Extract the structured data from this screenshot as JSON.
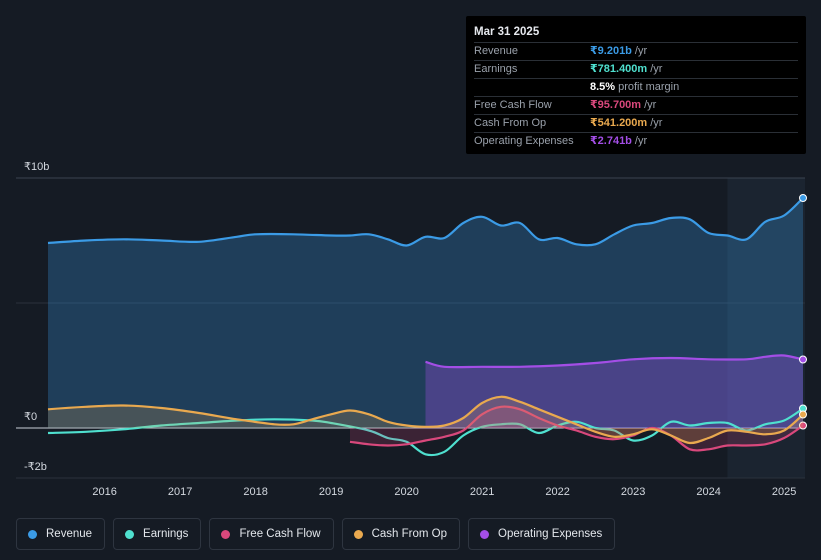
{
  "tooltip": {
    "date": "Mar 31 2025",
    "rows": [
      {
        "label": "Revenue",
        "value": "₹9.201b",
        "unit": "/yr",
        "color": "#3b9be6"
      },
      {
        "label": "Earnings",
        "value": "₹781.400m",
        "unit": "/yr",
        "color": "#4fe0cf"
      },
      {
        "label": "",
        "value": "8.5%",
        "unit": "profit margin",
        "color": "#ffffff"
      },
      {
        "label": "Free Cash Flow",
        "value": "₹95.700m",
        "unit": "/yr",
        "color": "#d9487c"
      },
      {
        "label": "Cash From Op",
        "value": "₹541.200m",
        "unit": "/yr",
        "color": "#e9a94f"
      },
      {
        "label": "Operating Expenses",
        "value": "₹2.741b",
        "unit": "/yr",
        "color": "#a34ee6"
      }
    ]
  },
  "legend": [
    {
      "label": "Revenue",
      "color": "#3b9be6"
    },
    {
      "label": "Earnings",
      "color": "#4fe0cf"
    },
    {
      "label": "Free Cash Flow",
      "color": "#d9487c"
    },
    {
      "label": "Cash From Op",
      "color": "#e9a94f"
    },
    {
      "label": "Operating Expenses",
      "color": "#a34ee6"
    }
  ],
  "chart_data": {
    "type": "area",
    "title": "",
    "y_tick_labels": [
      "₹10b",
      "₹0",
      "-₹2b"
    ],
    "ylim": [
      -2,
      10
    ],
    "xlim": [
      2015.25,
      2025.25
    ],
    "x_tick_labels": [
      "2016",
      "2017",
      "2018",
      "2019",
      "2020",
      "2021",
      "2022",
      "2023",
      "2024",
      "2025"
    ],
    "x_ticks": [
      2016,
      2017,
      2018,
      2019,
      2020,
      2021,
      2022,
      2023,
      2024,
      2025
    ],
    "highlight_from": 2024.25,
    "series": [
      {
        "name": "Revenue",
        "color": "#3b9be6",
        "fill": true,
        "points": [
          [
            2015.25,
            7.4
          ],
          [
            2015.75,
            7.5
          ],
          [
            2016.25,
            7.55
          ],
          [
            2016.75,
            7.5
          ],
          [
            2017.25,
            7.45
          ],
          [
            2017.75,
            7.65
          ],
          [
            2018.0,
            7.75
          ],
          [
            2018.5,
            7.75
          ],
          [
            2019.0,
            7.7
          ],
          [
            2019.25,
            7.7
          ],
          [
            2019.5,
            7.75
          ],
          [
            2019.75,
            7.55
          ],
          [
            2020.0,
            7.3
          ],
          [
            2020.25,
            7.65
          ],
          [
            2020.5,
            7.6
          ],
          [
            2020.75,
            8.2
          ],
          [
            2021.0,
            8.45
          ],
          [
            2021.25,
            8.1
          ],
          [
            2021.5,
            8.2
          ],
          [
            2021.75,
            7.55
          ],
          [
            2022.0,
            7.6
          ],
          [
            2022.25,
            7.35
          ],
          [
            2022.5,
            7.35
          ],
          [
            2022.75,
            7.75
          ],
          [
            2023.0,
            8.1
          ],
          [
            2023.25,
            8.2
          ],
          [
            2023.5,
            8.4
          ],
          [
            2023.75,
            8.35
          ],
          [
            2024.0,
            7.8
          ],
          [
            2024.25,
            7.7
          ],
          [
            2024.5,
            7.55
          ],
          [
            2024.75,
            8.25
          ],
          [
            2025.0,
            8.5
          ],
          [
            2025.25,
            9.2
          ]
        ]
      },
      {
        "name": "Operating Expenses",
        "color": "#a34ee6",
        "fill": true,
        "points": [
          [
            2020.25,
            2.65
          ],
          [
            2020.5,
            2.45
          ],
          [
            2021.0,
            2.45
          ],
          [
            2021.5,
            2.45
          ],
          [
            2022.0,
            2.5
          ],
          [
            2022.5,
            2.6
          ],
          [
            2023.0,
            2.75
          ],
          [
            2023.5,
            2.8
          ],
          [
            2024.0,
            2.75
          ],
          [
            2024.5,
            2.75
          ],
          [
            2024.75,
            2.85
          ],
          [
            2025.0,
            2.9
          ],
          [
            2025.25,
            2.74
          ]
        ]
      },
      {
        "name": "Earnings",
        "color": "#4fe0cf",
        "fill": false,
        "points": [
          [
            2015.25,
            -0.2
          ],
          [
            2015.75,
            -0.15
          ],
          [
            2016.25,
            -0.05
          ],
          [
            2016.75,
            0.1
          ],
          [
            2017.25,
            0.2
          ],
          [
            2017.75,
            0.3
          ],
          [
            2018.25,
            0.35
          ],
          [
            2018.75,
            0.3
          ],
          [
            2019.0,
            0.2
          ],
          [
            2019.5,
            -0.1
          ],
          [
            2019.75,
            -0.4
          ],
          [
            2020.0,
            -0.55
          ],
          [
            2020.25,
            -1.05
          ],
          [
            2020.5,
            -0.95
          ],
          [
            2020.75,
            -0.3
          ],
          [
            2021.0,
            0.05
          ],
          [
            2021.25,
            0.15
          ],
          [
            2021.5,
            0.15
          ],
          [
            2021.75,
            -0.2
          ],
          [
            2022.0,
            0.1
          ],
          [
            2022.25,
            0.25
          ],
          [
            2022.5,
            0.0
          ],
          [
            2022.75,
            -0.1
          ],
          [
            2023.0,
            -0.5
          ],
          [
            2023.25,
            -0.3
          ],
          [
            2023.5,
            0.25
          ],
          [
            2023.75,
            0.1
          ],
          [
            2024.0,
            0.2
          ],
          [
            2024.25,
            0.2
          ],
          [
            2024.5,
            -0.1
          ],
          [
            2024.75,
            0.15
          ],
          [
            2025.0,
            0.3
          ],
          [
            2025.25,
            0.78
          ]
        ]
      },
      {
        "name": "Free Cash Flow",
        "color": "#d9487c",
        "fill": true,
        "points": [
          [
            2019.25,
            -0.55
          ],
          [
            2019.5,
            -0.65
          ],
          [
            2019.75,
            -0.7
          ],
          [
            2020.0,
            -0.65
          ],
          [
            2020.25,
            -0.5
          ],
          [
            2020.5,
            -0.35
          ],
          [
            2020.75,
            -0.1
          ],
          [
            2021.0,
            0.55
          ],
          [
            2021.25,
            0.85
          ],
          [
            2021.5,
            0.75
          ],
          [
            2021.75,
            0.4
          ],
          [
            2022.0,
            0.1
          ],
          [
            2022.25,
            -0.1
          ],
          [
            2022.5,
            -0.35
          ],
          [
            2022.75,
            -0.45
          ],
          [
            2023.0,
            -0.3
          ],
          [
            2023.25,
            0.0
          ],
          [
            2023.5,
            -0.3
          ],
          [
            2023.75,
            -0.85
          ],
          [
            2024.0,
            -0.85
          ],
          [
            2024.25,
            -0.7
          ],
          [
            2024.5,
            -0.7
          ],
          [
            2024.75,
            -0.65
          ],
          [
            2025.0,
            -0.4
          ],
          [
            2025.25,
            0.1
          ]
        ]
      },
      {
        "name": "Cash From Op",
        "color": "#e9a94f",
        "fill": true,
        "points": [
          [
            2015.25,
            0.75
          ],
          [
            2015.75,
            0.85
          ],
          [
            2016.25,
            0.9
          ],
          [
            2016.75,
            0.8
          ],
          [
            2017.25,
            0.6
          ],
          [
            2017.75,
            0.35
          ],
          [
            2018.25,
            0.15
          ],
          [
            2018.5,
            0.15
          ],
          [
            2018.75,
            0.35
          ],
          [
            2019.0,
            0.55
          ],
          [
            2019.25,
            0.7
          ],
          [
            2019.5,
            0.55
          ],
          [
            2019.75,
            0.25
          ],
          [
            2020.0,
            0.1
          ],
          [
            2020.25,
            0.05
          ],
          [
            2020.5,
            0.1
          ],
          [
            2020.75,
            0.4
          ],
          [
            2021.0,
            1.0
          ],
          [
            2021.25,
            1.25
          ],
          [
            2021.5,
            1.05
          ],
          [
            2021.75,
            0.75
          ],
          [
            2022.0,
            0.45
          ],
          [
            2022.25,
            0.15
          ],
          [
            2022.5,
            -0.15
          ],
          [
            2022.75,
            -0.35
          ],
          [
            2023.0,
            -0.25
          ],
          [
            2023.25,
            -0.05
          ],
          [
            2023.5,
            -0.3
          ],
          [
            2023.75,
            -0.6
          ],
          [
            2024.0,
            -0.4
          ],
          [
            2024.25,
            -0.1
          ],
          [
            2024.5,
            -0.15
          ],
          [
            2024.75,
            -0.25
          ],
          [
            2025.0,
            -0.1
          ],
          [
            2025.25,
            0.54
          ]
        ]
      }
    ]
  }
}
